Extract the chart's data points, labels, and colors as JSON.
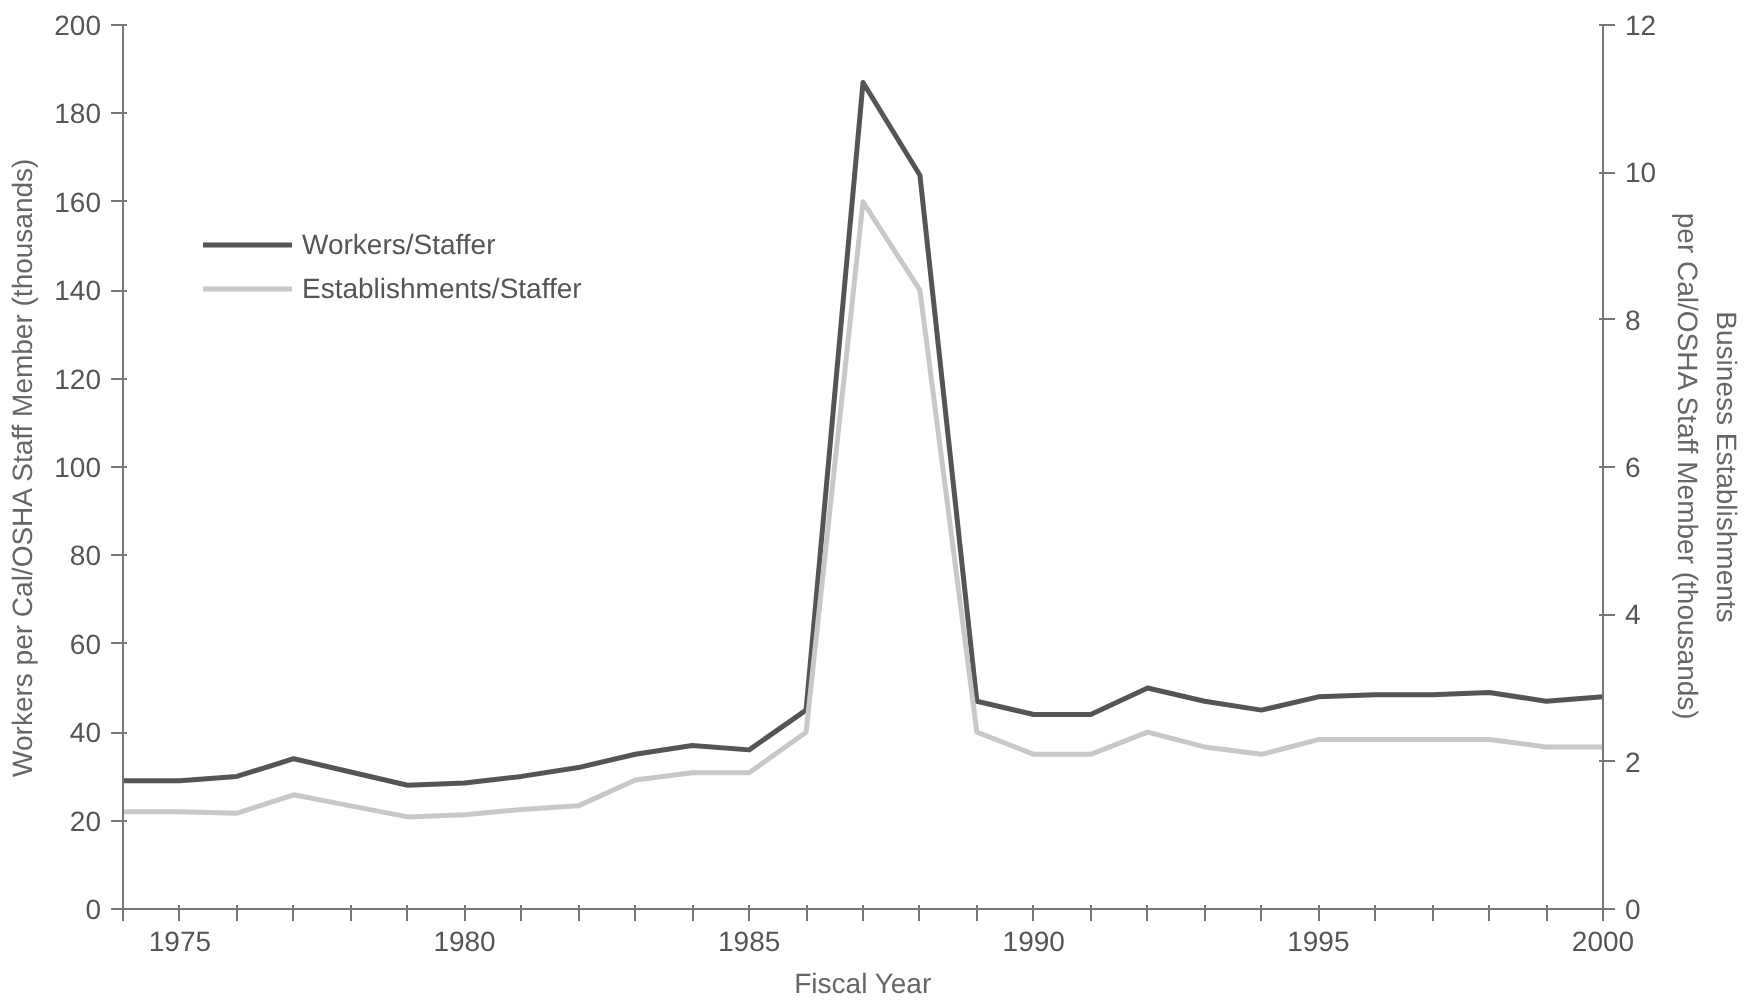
{
  "chart_data": {
    "type": "line",
    "xlabel": "Fiscal Year",
    "ylabel": "Workers per Cal/OSHA Staff Member (thousands)",
    "y2label": "Business Establishments\nper Cal/OSHA Staff Member (thousands)",
    "x": [
      1974,
      1975,
      1976,
      1977,
      1978,
      1979,
      1980,
      1981,
      1982,
      1983,
      1984,
      1985,
      1986,
      1987,
      1988,
      1989,
      1990,
      1991,
      1992,
      1993,
      1994,
      1995,
      1996,
      1997,
      1998,
      1999,
      2000
    ],
    "series": [
      {
        "name": "Workers/Staffer",
        "color": "#555555",
        "values": [
          29,
          29,
          30,
          34,
          31,
          28,
          28.5,
          30,
          32,
          35,
          37,
          36,
          45,
          187,
          166,
          47,
          44,
          44,
          50,
          47,
          45,
          48,
          48.5,
          48.5,
          49,
          47,
          48
        ]
      },
      {
        "name": "Establishments/Staffer",
        "color": "#c8c8c8",
        "axis": "y2",
        "values": [
          1.32,
          1.32,
          1.3,
          1.55,
          1.4,
          1.25,
          1.28,
          1.35,
          1.4,
          1.75,
          1.85,
          1.85,
          2.4,
          9.6,
          8.4,
          2.4,
          2.1,
          2.1,
          2.4,
          2.2,
          2.1,
          2.3,
          2.3,
          2.3,
          2.3,
          2.2,
          2.2
        ]
      }
    ],
    "xlim": [
      1974,
      2000
    ],
    "xticks": [
      {
        "value": 1974,
        "label": null
      },
      1975,
      {
        "value": 1976,
        "label": null
      },
      {
        "value": 1977,
        "label": null
      },
      {
        "value": 1978,
        "label": null
      },
      {
        "value": 1979,
        "label": null
      },
      1980,
      {
        "value": 1981,
        "label": null
      },
      {
        "value": 1982,
        "label": null
      },
      {
        "value": 1983,
        "label": null
      },
      {
        "value": 1984,
        "label": null
      },
      1985,
      {
        "value": 1986,
        "label": null
      },
      {
        "value": 1987,
        "label": null
      },
      {
        "value": 1988,
        "label": null
      },
      {
        "value": 1989,
        "label": null
      },
      1990,
      {
        "value": 1991,
        "label": null
      },
      {
        "value": 1992,
        "label": null
      },
      {
        "value": 1993,
        "label": null
      },
      {
        "value": 1994,
        "label": null
      },
      1995,
      {
        "value": 1996,
        "label": null
      },
      {
        "value": 1997,
        "label": null
      },
      {
        "value": 1998,
        "label": null
      },
      {
        "value": 1999,
        "label": null
      },
      2000
    ],
    "ylim": [
      0,
      200
    ],
    "yticks": [
      0,
      20,
      40,
      60,
      80,
      100,
      120,
      140,
      160,
      180,
      200
    ],
    "y2lim": [
      0,
      12
    ],
    "y2ticks": [
      0,
      2,
      4,
      6,
      8,
      10,
      12
    ],
    "grid": false,
    "legend": "top left",
    "marker": "none",
    "line_style": "solid"
  }
}
